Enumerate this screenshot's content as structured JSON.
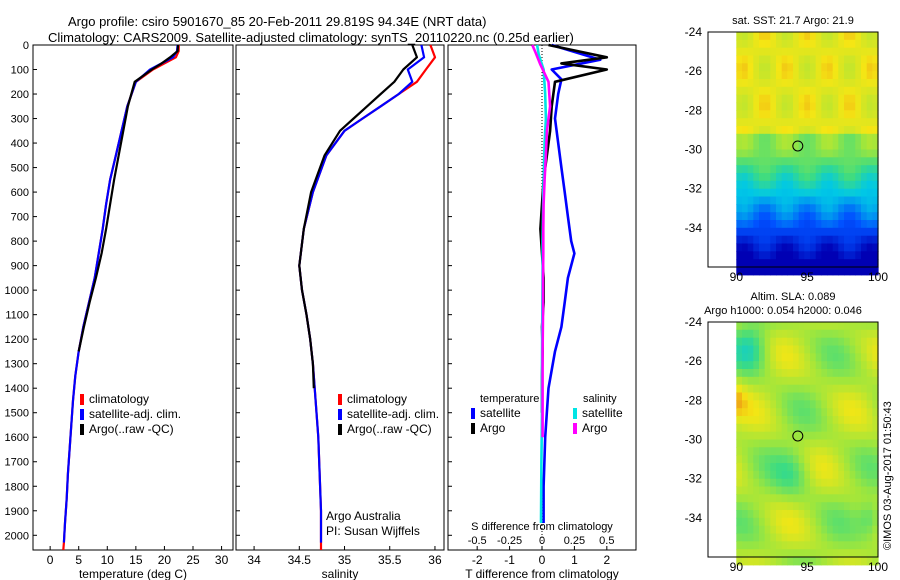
{
  "header": {
    "line1": "Argo profile: csiro 5901670_85 20-Feb-2011 29.819S 94.34E (NRT data)",
    "line2": "Climatology: CARS2009. Satellite-adjusted climatology: synTS_20110220.nc (0.25d earlier)"
  },
  "colors": {
    "climatology": "#ff0000",
    "satellite": "#0000ff",
    "argo": "#000000",
    "argo_salinity": "#ff00ff",
    "satellite_salinity": "#00e5e5"
  },
  "chart_data": [
    {
      "type": "line",
      "xlabel": "temperature (deg C)",
      "ylabel": "",
      "xlim": [
        -3,
        32
      ],
      "ylim": [
        2060,
        0
      ],
      "y_reversed": true,
      "xticks": [
        0,
        5,
        10,
        15,
        20,
        25,
        30
      ],
      "yticks": [
        0,
        100,
        200,
        300,
        400,
        500,
        600,
        700,
        800,
        900,
        1000,
        1100,
        1200,
        1300,
        1400,
        1500,
        1600,
        1700,
        1800,
        1900,
        2000
      ],
      "legend": [
        "climatology",
        "satellite-adj. clim.",
        "Argo(..raw -QC)"
      ],
      "series": [
        {
          "name": "climatology",
          "color": "#ff0000",
          "x": [
            22.5,
            22.5,
            22,
            20,
            18,
            15,
            13.5,
            12.5,
            11.5,
            10.5,
            9.8,
            9.2,
            8.5,
            7.8,
            6.8,
            5.8,
            5.0,
            4.4,
            4.0,
            3.7,
            3.4,
            3.1,
            2.9,
            2.6,
            2.4,
            2.3
          ],
          "y": [
            0,
            25,
            50,
            75,
            100,
            150,
            250,
            350,
            450,
            550,
            650,
            750,
            850,
            950,
            1050,
            1150,
            1250,
            1350,
            1450,
            1550,
            1650,
            1750,
            1850,
            1950,
            2030,
            2060
          ]
        },
        {
          "name": "satellite-adj. clim.",
          "color": "#0000ff",
          "x": [
            22.3,
            22.2,
            21.5,
            19.5,
            17.5,
            15,
            13.5,
            12.5,
            11.5,
            10.5,
            9.8,
            9.2,
            8.5,
            7.8,
            6.8,
            5.8,
            5.0,
            4.4,
            4.0,
            3.7,
            3.4,
            3.1,
            2.9,
            2.6,
            2.4
          ],
          "y": [
            0,
            25,
            50,
            75,
            100,
            150,
            250,
            350,
            450,
            550,
            650,
            750,
            850,
            950,
            1050,
            1150,
            1250,
            1350,
            1450,
            1550,
            1650,
            1750,
            1850,
            1950,
            2030
          ]
        },
        {
          "name": "Argo(..raw -QC)",
          "color": "#000000",
          "x": [
            22.4,
            22.3,
            21,
            19.5,
            17.8,
            14.8,
            13.6,
            12.8,
            12,
            11.2,
            10.5,
            9.8,
            9,
            8,
            6.9,
            5.9,
            5.0
          ],
          "y": [
            0,
            25,
            50,
            75,
            100,
            150,
            250,
            350,
            450,
            550,
            650,
            750,
            850,
            950,
            1050,
            1150,
            1250
          ]
        }
      ]
    },
    {
      "type": "line",
      "xlabel": "salinity",
      "ylabel": "",
      "xlim": [
        33.8,
        36.1
      ],
      "ylim": [
        2060,
        0
      ],
      "y_reversed": true,
      "xticks": [
        34,
        34.5,
        35,
        35.5,
        36
      ],
      "legend": [
        "climatology",
        "satellite-adj. clim.",
        "Argo(..raw -QC)"
      ],
      "annotation": [
        "Argo Australia",
        "PI: Susan Wijffels"
      ],
      "series": [
        {
          "name": "climatology",
          "color": "#ff0000",
          "x": [
            35.95,
            36.0,
            35.9,
            35.8,
            35.6,
            35.4,
            35.2,
            35.0,
            34.8,
            34.65,
            34.55,
            34.5,
            34.53,
            34.58,
            34.62,
            34.65,
            34.67,
            34.69,
            34.71,
            34.72,
            34.73,
            34.74,
            34.74,
            34.74
          ],
          "y": [
            0,
            50,
            100,
            150,
            200,
            250,
            300,
            350,
            450,
            600,
            750,
            900,
            1000,
            1100,
            1200,
            1300,
            1400,
            1500,
            1600,
            1700,
            1800,
            1900,
            2000,
            2060
          ]
        },
        {
          "name": "satellite-adj. clim.",
          "color": "#0000ff",
          "x": [
            35.85,
            35.88,
            35.7,
            35.75,
            35.6,
            35.4,
            35.2,
            35.0,
            34.8,
            34.65,
            34.55,
            34.5,
            34.53,
            34.58,
            34.62,
            34.65,
            34.67,
            34.69,
            34.71,
            34.72,
            34.73,
            34.74,
            34.74
          ],
          "y": [
            0,
            50,
            100,
            150,
            200,
            250,
            300,
            350,
            450,
            600,
            750,
            900,
            1000,
            1100,
            1200,
            1300,
            1400,
            1500,
            1600,
            1700,
            1800,
            1900,
            2030
          ]
        },
        {
          "name": "Argo(..raw -QC)",
          "color": "#000000",
          "x": [
            35.75,
            35.8,
            35.65,
            35.55,
            35.4,
            35.25,
            35.1,
            34.95,
            34.78,
            34.63,
            34.55,
            34.5,
            34.53,
            34.58,
            34.62,
            34.65,
            34.66
          ],
          "y": [
            0,
            50,
            100,
            150,
            200,
            250,
            300,
            350,
            450,
            600,
            750,
            900,
            1000,
            1100,
            1200,
            1300,
            1400
          ]
        }
      ]
    },
    {
      "type": "line",
      "xlabel": "T difference from climatology",
      "ylabel": "",
      "xlim": [
        -2.9,
        2.9
      ],
      "ylim": [
        2060,
        0
      ],
      "y_reversed": true,
      "xticks": [
        -2,
        -1,
        0,
        1,
        2
      ],
      "top_axis_label": "S difference from climatology",
      "top_xticks": [
        "-0.5",
        "-0.25",
        "0",
        "0.25",
        "0.5"
      ],
      "legend_titles": [
        "temperature",
        "salinity"
      ],
      "legend": [
        "satellite",
        "Argo",
        "satellite",
        "Argo"
      ],
      "series": [
        {
          "name": "satellite",
          "group": "temperature",
          "color": "#0000ff",
          "x": [
            0.3,
            1.8,
            0.3,
            0.6,
            0.5,
            0.4,
            0.5,
            0.6,
            0.7,
            0.8,
            0.9,
            1.0,
            0.8,
            0.7,
            0.6,
            0.4,
            0.2,
            0.1,
            0.05,
            0.05
          ],
          "y": [
            0,
            60,
            100,
            140,
            200,
            300,
            400,
            500,
            600,
            700,
            800,
            850,
            950,
            1050,
            1150,
            1250,
            1400,
            1600,
            1800,
            1950
          ]
        },
        {
          "name": "Argo",
          "group": "temperature",
          "color": "#000000",
          "x": [
            0.2,
            2.0,
            0.6,
            2.0,
            0.4,
            0.3,
            0.25,
            0.15,
            0.05,
            0.0,
            -0.05,
            0.0,
            0.05,
            0.05,
            0.0,
            0.02,
            0.0,
            0.0
          ],
          "y": [
            0,
            50,
            75,
            100,
            150,
            250,
            350,
            450,
            550,
            650,
            750,
            850,
            950,
            1050,
            1150,
            1250,
            1350,
            1500
          ]
        },
        {
          "name": "satellite",
          "group": "salinity",
          "color": "#00e5e5",
          "x": [
            -0.15,
            -0.1,
            0.05,
            0.1,
            0.12,
            0.08,
            0.06,
            0.04,
            0.03,
            0.02,
            0.02,
            0.01,
            0.0,
            0.0,
            -0.02,
            -0.03
          ],
          "y": [
            0,
            40,
            100,
            200,
            300,
            400,
            500,
            600,
            700,
            800,
            900,
            1100,
            1300,
            1500,
            1700,
            1950
          ]
        },
        {
          "name": "Argo",
          "group": "salinity",
          "color": "#ff00ff",
          "x": [
            -0.3,
            -0.2,
            -0.05,
            0.2,
            0.25,
            0.15,
            0.12,
            0.08,
            0.05,
            0.04,
            0.04,
            0.03,
            0.03,
            0.02,
            0.02,
            0.02
          ],
          "y": [
            0,
            30,
            80,
            150,
            250,
            350,
            450,
            550,
            650,
            750,
            850,
            950,
            1100,
            1250,
            1400,
            1600
          ]
        }
      ]
    },
    {
      "type": "heatmap",
      "title": "sat. SST: 21.7 Argo: 21.9",
      "xlim": [
        88,
        100
      ],
      "ylim": [
        -36,
        -24
      ],
      "xticks": [
        90,
        95,
        100
      ],
      "yticks": [
        -24,
        -26,
        -28,
        -30,
        -32,
        -34
      ],
      "marker": {
        "lon": 94.34,
        "lat": -29.82
      }
    },
    {
      "type": "heatmap",
      "title": "Altim. SLA: 0.089",
      "subtitle": "Argo h1000: 0.054 h2000: 0.046",
      "xlim": [
        88,
        100
      ],
      "ylim": [
        -36,
        -24
      ],
      "xticks": [
        90,
        95,
        100
      ],
      "yticks": [
        -24,
        -26,
        -28,
        -30,
        -32,
        -34
      ],
      "marker": {
        "lon": 94.34,
        "lat": -29.82
      }
    }
  ],
  "footer": {
    "credit": "©IMOS 03-Aug-2017 01:50:43"
  }
}
